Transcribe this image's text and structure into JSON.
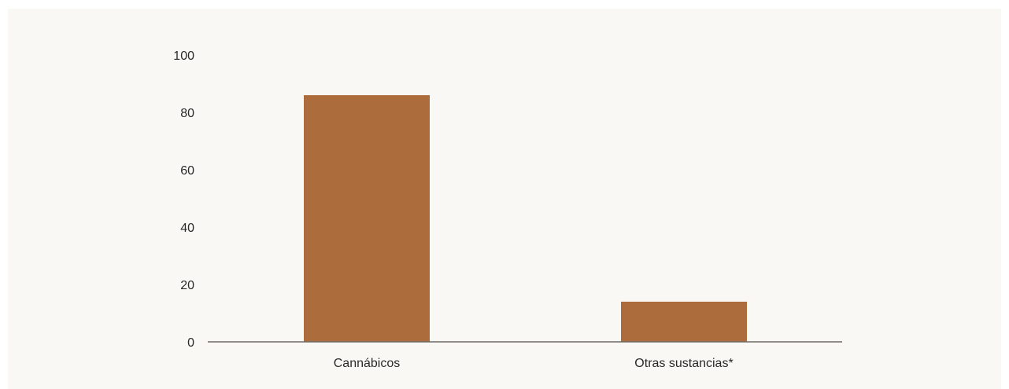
{
  "chart_data": {
    "type": "bar",
    "title": "",
    "xlabel": "",
    "ylabel": "",
    "categories": [
      "Cannábicos",
      "Otras sustancias*"
    ],
    "values": [
      86,
      14
    ],
    "ylim": [
      0,
      100
    ],
    "yticks": [
      0,
      20,
      40,
      60,
      80,
      100
    ],
    "grid": false,
    "legend": "none",
    "colors": {
      "bar": "#ad6c3b",
      "axis": "#6e6a66",
      "text": "#2a2a2a",
      "background": "#f9f8f5"
    }
  }
}
